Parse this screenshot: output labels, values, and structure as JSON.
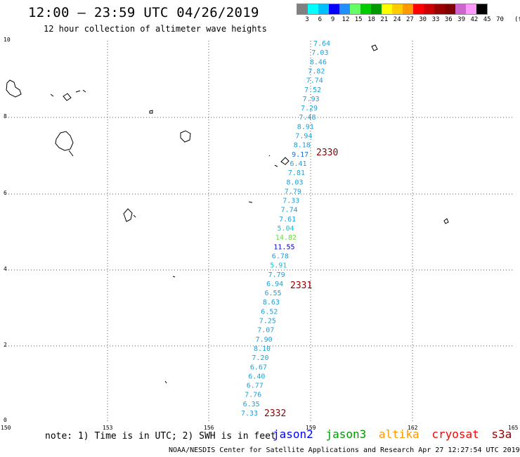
{
  "header": {
    "title": "12:00 – 23:59 UTC 04/26/2019",
    "subtitle": "12 hour collection of altimeter wave heights"
  },
  "legend": {
    "colors": [
      "#808080",
      "#00ffff",
      "#00bfff",
      "#0000ff",
      "#1e90ff",
      "#66ff66",
      "#00cc00",
      "#009900",
      "#ffff00",
      "#ffcc00",
      "#ff9900",
      "#ff0000",
      "#cc0000",
      "#990000",
      "#800000",
      "#cc66cc",
      "#ff99ff",
      "#000000"
    ],
    "labels": [
      "3",
      "6",
      "9",
      "12",
      "15",
      "18",
      "21",
      "24",
      "27",
      "30",
      "33",
      "36",
      "39",
      "42",
      "45",
      "70"
    ],
    "unit": "(ft)"
  },
  "axes": {
    "x_ticks": [
      "150",
      "153",
      "156",
      "159",
      "162",
      "165"
    ],
    "y_ticks": [
      "0",
      "2",
      "4",
      "6",
      "8",
      "10"
    ]
  },
  "tracks": [
    {
      "name": "2330",
      "color": "#8b0000"
    },
    {
      "name": "2331",
      "color": "#8b0000"
    },
    {
      "name": "2332",
      "color": "#8b0000"
    }
  ],
  "wave_heights": [
    {
      "v": "7.64",
      "c": "#1ea0d8"
    },
    {
      "v": "7.03",
      "c": "#1ea0d8"
    },
    {
      "v": "8.46",
      "c": "#1ea0d8"
    },
    {
      "v": "7.82",
      "c": "#1ea0d8"
    },
    {
      "v": "7.74",
      "c": "#1ea0d8"
    },
    {
      "v": "7.52",
      "c": "#1ea0d8"
    },
    {
      "v": "7.93",
      "c": "#1ea0d8"
    },
    {
      "v": "7.29",
      "c": "#1ea0d8"
    },
    {
      "v": "7.48",
      "c": "#1ea0d8"
    },
    {
      "v": "8.91",
      "c": "#1ea0d8"
    },
    {
      "v": "7.94",
      "c": "#1ea0d8"
    },
    {
      "v": "8.18",
      "c": "#1ea0d8"
    },
    {
      "v": "9.17",
      "c": "#1e6fd8"
    },
    {
      "v": "6.41",
      "c": "#1ea0d8"
    },
    {
      "v": "7.81",
      "c": "#1ea0d8"
    },
    {
      "v": "8.03",
      "c": "#1ea0d8"
    },
    {
      "v": "7.79",
      "c": "#1ea0d8"
    },
    {
      "v": "7.33",
      "c": "#1ea0d8"
    },
    {
      "v": "7.74",
      "c": "#1ea0d8"
    },
    {
      "v": "7.61",
      "c": "#1ea0d8"
    },
    {
      "v": "5.04",
      "c": "#00c8e0"
    },
    {
      "v": "14.82",
      "c": "#66dd33"
    },
    {
      "v": "11.55",
      "c": "#0000cc"
    },
    {
      "v": "6.78",
      "c": "#1ea0d8"
    },
    {
      "v": "5.91",
      "c": "#00c8e0"
    },
    {
      "v": "7.79",
      "c": "#1ea0d8"
    },
    {
      "v": "6.94",
      "c": "#1ea0d8"
    },
    {
      "v": "6.55",
      "c": "#1ea0d8"
    },
    {
      "v": "8.63",
      "c": "#1ea0d8"
    },
    {
      "v": "6.52",
      "c": "#1ea0d8"
    },
    {
      "v": "7.25",
      "c": "#1ea0d8"
    },
    {
      "v": "7.07",
      "c": "#1ea0d8"
    },
    {
      "v": "7.90",
      "c": "#1ea0d8"
    },
    {
      "v": "8.10",
      "c": "#1ea0d8"
    },
    {
      "v": "7.20",
      "c": "#1ea0d8"
    },
    {
      "v": "6.67",
      "c": "#1ea0d8"
    },
    {
      "v": "6.40",
      "c": "#1ea0d8"
    },
    {
      "v": "6.77",
      "c": "#1ea0d8"
    },
    {
      "v": "7.76",
      "c": "#1ea0d8"
    },
    {
      "v": "6.35",
      "c": "#1ea0d8"
    },
    {
      "v": "7.33",
      "c": "#1ea0d8"
    }
  ],
  "footer": {
    "note": "note: 1) Time is in UTC; 2) SWH is in feet",
    "satellites": [
      {
        "name": "jason2",
        "color": "#0000ff"
      },
      {
        "name": "jason3",
        "color": "#009900"
      },
      {
        "name": "altika",
        "color": "#ff9900"
      },
      {
        "name": "cryosat",
        "color": "#ff0000"
      },
      {
        "name": "s3a",
        "color": "#8b0000"
      }
    ],
    "credit": "NOAA/NESDIS Center for Satellite Applications and Research   Apr 27 12:27:54 UTC 2019"
  }
}
